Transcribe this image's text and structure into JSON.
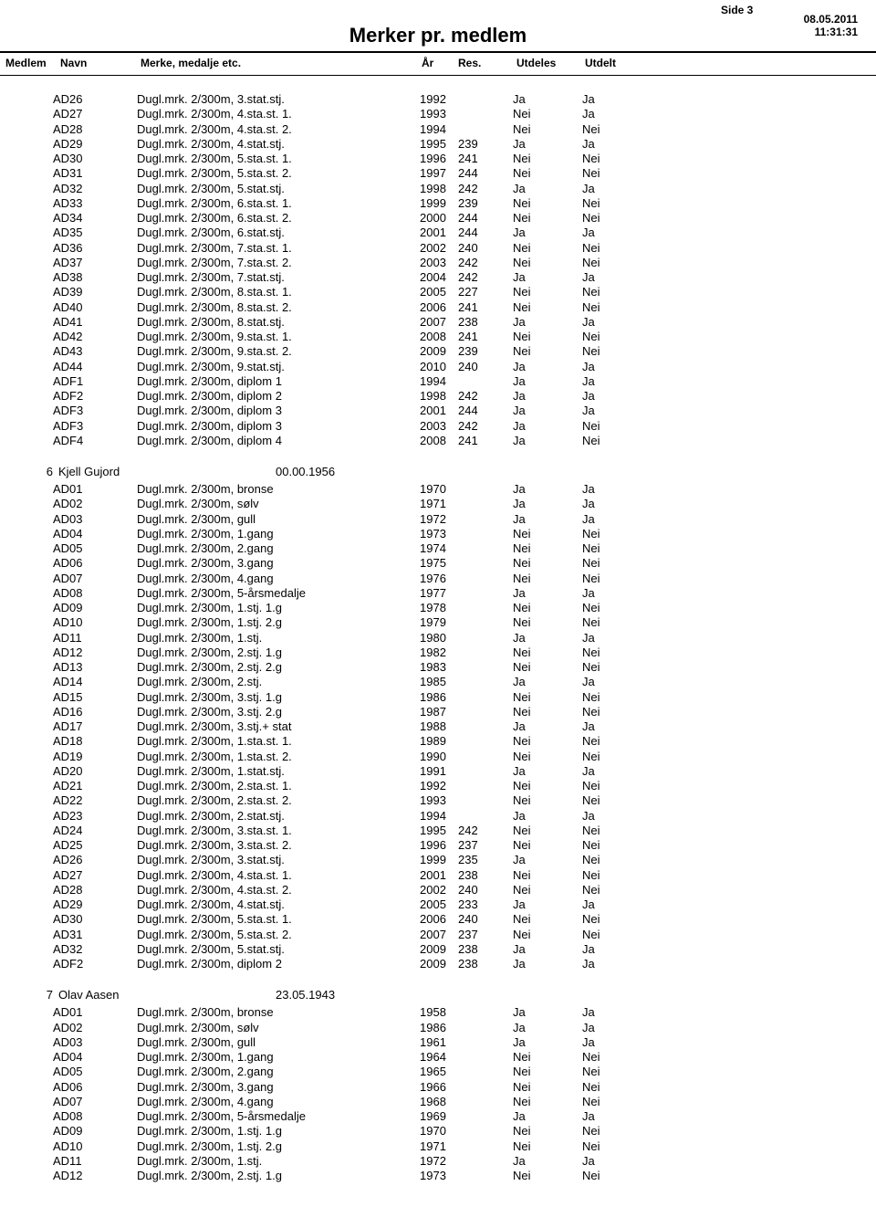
{
  "meta": {
    "side_label": "Side 3",
    "date": "08.05.2011",
    "time": "11:31:31",
    "title": "Merker pr. medlem"
  },
  "headers": {
    "medlem": "Medlem",
    "navn": "Navn",
    "merke": "Merke, medalje etc.",
    "ar": "År",
    "res": "Res.",
    "utdeles": "Utdeles",
    "utdelt": "Utdelt"
  },
  "sections": [
    {
      "member_id": "",
      "member_name": "",
      "member_dob": "",
      "show_member_line": false,
      "rows": [
        {
          "code": "AD26",
          "merke": "Dugl.mrk. 2/300m, 3.stat.stj.",
          "ar": "1992",
          "res": "",
          "utdeles": "Ja",
          "utdelt": "Ja"
        },
        {
          "code": "AD27",
          "merke": "Dugl.mrk. 2/300m, 4.sta.st. 1.",
          "ar": "1993",
          "res": "",
          "utdeles": "Nei",
          "utdelt": "Ja"
        },
        {
          "code": "AD28",
          "merke": "Dugl.mrk. 2/300m, 4.sta.st. 2.",
          "ar": "1994",
          "res": "",
          "utdeles": "Nei",
          "utdelt": "Nei"
        },
        {
          "code": "AD29",
          "merke": "Dugl.mrk. 2/300m, 4.stat.stj.",
          "ar": "1995",
          "res": "239",
          "utdeles": "Ja",
          "utdelt": "Ja"
        },
        {
          "code": "AD30",
          "merke": "Dugl.mrk. 2/300m, 5.sta.st. 1.",
          "ar": "1996",
          "res": "241",
          "utdeles": "Nei",
          "utdelt": "Nei"
        },
        {
          "code": "AD31",
          "merke": "Dugl.mrk. 2/300m, 5.sta.st. 2.",
          "ar": "1997",
          "res": "244",
          "utdeles": "Nei",
          "utdelt": "Nei"
        },
        {
          "code": "AD32",
          "merke": "Dugl.mrk. 2/300m, 5.stat.stj.",
          "ar": "1998",
          "res": "242",
          "utdeles": "Ja",
          "utdelt": "Ja"
        },
        {
          "code": "AD33",
          "merke": "Dugl.mrk. 2/300m, 6.sta.st. 1.",
          "ar": "1999",
          "res": "239",
          "utdeles": "Nei",
          "utdelt": "Nei"
        },
        {
          "code": "AD34",
          "merke": "Dugl.mrk. 2/300m, 6.sta.st. 2.",
          "ar": "2000",
          "res": "244",
          "utdeles": "Nei",
          "utdelt": "Nei"
        },
        {
          "code": "AD35",
          "merke": "Dugl.mrk. 2/300m, 6.stat.stj.",
          "ar": "2001",
          "res": "244",
          "utdeles": "Ja",
          "utdelt": "Ja"
        },
        {
          "code": "AD36",
          "merke": "Dugl.mrk. 2/300m, 7.sta.st. 1.",
          "ar": "2002",
          "res": "240",
          "utdeles": "Nei",
          "utdelt": "Nei"
        },
        {
          "code": "AD37",
          "merke": "Dugl.mrk. 2/300m, 7.sta.st. 2.",
          "ar": "2003",
          "res": "242",
          "utdeles": "Nei",
          "utdelt": "Nei"
        },
        {
          "code": "AD38",
          "merke": "Dugl.mrk. 2/300m, 7.stat.stj.",
          "ar": "2004",
          "res": "242",
          "utdeles": "Ja",
          "utdelt": "Ja"
        },
        {
          "code": "AD39",
          "merke": "Dugl.mrk. 2/300m, 8.sta.st. 1.",
          "ar": "2005",
          "res": "227",
          "utdeles": "Nei",
          "utdelt": "Nei"
        },
        {
          "code": "AD40",
          "merke": "Dugl.mrk. 2/300m, 8.sta.st. 2.",
          "ar": "2006",
          "res": "241",
          "utdeles": "Nei",
          "utdelt": "Nei"
        },
        {
          "code": "AD41",
          "merke": "Dugl.mrk. 2/300m, 8.stat.stj.",
          "ar": "2007",
          "res": "238",
          "utdeles": "Ja",
          "utdelt": "Ja"
        },
        {
          "code": "AD42",
          "merke": "Dugl.mrk. 2/300m, 9.sta.st. 1.",
          "ar": "2008",
          "res": "241",
          "utdeles": "Nei",
          "utdelt": "Nei"
        },
        {
          "code": "AD43",
          "merke": "Dugl.mrk. 2/300m, 9.sta.st. 2.",
          "ar": "2009",
          "res": "239",
          "utdeles": "Nei",
          "utdelt": "Nei"
        },
        {
          "code": "AD44",
          "merke": "Dugl.mrk. 2/300m, 9.stat.stj.",
          "ar": "2010",
          "res": "240",
          "utdeles": "Ja",
          "utdelt": "Ja"
        },
        {
          "code": "ADF1",
          "merke": "Dugl.mrk. 2/300m, diplom 1",
          "ar": "1994",
          "res": "",
          "utdeles": "Ja",
          "utdelt": "Ja"
        },
        {
          "code": "ADF2",
          "merke": "Dugl.mrk. 2/300m, diplom 2",
          "ar": "1998",
          "res": "242",
          "utdeles": "Ja",
          "utdelt": "Ja"
        },
        {
          "code": "ADF3",
          "merke": "Dugl.mrk. 2/300m, diplom 3",
          "ar": "2001",
          "res": "244",
          "utdeles": "Ja",
          "utdelt": "Ja"
        },
        {
          "code": "ADF3",
          "merke": "Dugl.mrk. 2/300m, diplom 3",
          "ar": "2003",
          "res": "242",
          "utdeles": "Ja",
          "utdelt": "Nei"
        },
        {
          "code": "ADF4",
          "merke": "Dugl.mrk. 2/300m, diplom 4",
          "ar": "2008",
          "res": "241",
          "utdeles": "Ja",
          "utdelt": "Nei"
        }
      ]
    },
    {
      "member_id": "6",
      "member_name": "Kjell Gujord",
      "member_dob": "00.00.1956",
      "show_member_line": true,
      "rows": [
        {
          "code": "AD01",
          "merke": "Dugl.mrk. 2/300m, bronse",
          "ar": "1970",
          "res": "",
          "utdeles": "Ja",
          "utdelt": "Ja"
        },
        {
          "code": "AD02",
          "merke": "Dugl.mrk. 2/300m, sølv",
          "ar": "1971",
          "res": "",
          "utdeles": "Ja",
          "utdelt": "Ja"
        },
        {
          "code": "AD03",
          "merke": "Dugl.mrk. 2/300m, gull",
          "ar": "1972",
          "res": "",
          "utdeles": "Ja",
          "utdelt": "Ja"
        },
        {
          "code": "AD04",
          "merke": "Dugl.mrk. 2/300m, 1.gang",
          "ar": "1973",
          "res": "",
          "utdeles": "Nei",
          "utdelt": "Nei"
        },
        {
          "code": "AD05",
          "merke": "Dugl.mrk. 2/300m, 2.gang",
          "ar": "1974",
          "res": "",
          "utdeles": "Nei",
          "utdelt": "Nei"
        },
        {
          "code": "AD06",
          "merke": "Dugl.mrk. 2/300m, 3.gang",
          "ar": "1975",
          "res": "",
          "utdeles": "Nei",
          "utdelt": "Nei"
        },
        {
          "code": "AD07",
          "merke": "Dugl.mrk. 2/300m, 4.gang",
          "ar": "1976",
          "res": "",
          "utdeles": "Nei",
          "utdelt": "Nei"
        },
        {
          "code": "AD08",
          "merke": "Dugl.mrk. 2/300m, 5-årsmedalje",
          "ar": "1977",
          "res": "",
          "utdeles": "Ja",
          "utdelt": "Ja"
        },
        {
          "code": "AD09",
          "merke": "Dugl.mrk. 2/300m, 1.stj. 1.g",
          "ar": "1978",
          "res": "",
          "utdeles": "Nei",
          "utdelt": "Nei"
        },
        {
          "code": "AD10",
          "merke": "Dugl.mrk. 2/300m, 1.stj. 2.g",
          "ar": "1979",
          "res": "",
          "utdeles": "Nei",
          "utdelt": "Nei"
        },
        {
          "code": "AD11",
          "merke": "Dugl.mrk. 2/300m, 1.stj.",
          "ar": "1980",
          "res": "",
          "utdeles": "Ja",
          "utdelt": "Ja"
        },
        {
          "code": "AD12",
          "merke": "Dugl.mrk. 2/300m, 2.stj. 1.g",
          "ar": "1982",
          "res": "",
          "utdeles": "Nei",
          "utdelt": "Nei"
        },
        {
          "code": "AD13",
          "merke": "Dugl.mrk. 2/300m, 2.stj. 2.g",
          "ar": "1983",
          "res": "",
          "utdeles": "Nei",
          "utdelt": "Nei"
        },
        {
          "code": "AD14",
          "merke": "Dugl.mrk. 2/300m, 2.stj.",
          "ar": "1985",
          "res": "",
          "utdeles": "Ja",
          "utdelt": "Ja"
        },
        {
          "code": "AD15",
          "merke": "Dugl.mrk. 2/300m, 3.stj. 1.g",
          "ar": "1986",
          "res": "",
          "utdeles": "Nei",
          "utdelt": "Nei"
        },
        {
          "code": "AD16",
          "merke": "Dugl.mrk. 2/300m, 3.stj. 2.g",
          "ar": "1987",
          "res": "",
          "utdeles": "Nei",
          "utdelt": "Nei"
        },
        {
          "code": "AD17",
          "merke": "Dugl.mrk. 2/300m, 3.stj.+ stat",
          "ar": "1988",
          "res": "",
          "utdeles": "Ja",
          "utdelt": "Ja"
        },
        {
          "code": "AD18",
          "merke": "Dugl.mrk. 2/300m, 1.sta.st. 1.",
          "ar": "1989",
          "res": "",
          "utdeles": "Nei",
          "utdelt": "Nei"
        },
        {
          "code": "AD19",
          "merke": "Dugl.mrk. 2/300m, 1.sta.st. 2.",
          "ar": "1990",
          "res": "",
          "utdeles": "Nei",
          "utdelt": "Nei"
        },
        {
          "code": "AD20",
          "merke": "Dugl.mrk. 2/300m, 1.stat.stj.",
          "ar": "1991",
          "res": "",
          "utdeles": "Ja",
          "utdelt": "Ja"
        },
        {
          "code": "AD21",
          "merke": "Dugl.mrk. 2/300m, 2.sta.st. 1.",
          "ar": "1992",
          "res": "",
          "utdeles": "Nei",
          "utdelt": "Nei"
        },
        {
          "code": "AD22",
          "merke": "Dugl.mrk. 2/300m, 2.sta.st. 2.",
          "ar": "1993",
          "res": "",
          "utdeles": "Nei",
          "utdelt": "Nei"
        },
        {
          "code": "AD23",
          "merke": "Dugl.mrk. 2/300m, 2.stat.stj.",
          "ar": "1994",
          "res": "",
          "utdeles": "Ja",
          "utdelt": "Ja"
        },
        {
          "code": "AD24",
          "merke": "Dugl.mrk. 2/300m, 3.sta.st. 1.",
          "ar": "1995",
          "res": "242",
          "utdeles": "Nei",
          "utdelt": "Nei"
        },
        {
          "code": "AD25",
          "merke": "Dugl.mrk. 2/300m, 3.sta.st. 2.",
          "ar": "1996",
          "res": "237",
          "utdeles": "Nei",
          "utdelt": "Nei"
        },
        {
          "code": "AD26",
          "merke": "Dugl.mrk. 2/300m, 3.stat.stj.",
          "ar": "1999",
          "res": "235",
          "utdeles": "Ja",
          "utdelt": "Nei"
        },
        {
          "code": "AD27",
          "merke": "Dugl.mrk. 2/300m, 4.sta.st. 1.",
          "ar": "2001",
          "res": "238",
          "utdeles": "Nei",
          "utdelt": "Nei"
        },
        {
          "code": "AD28",
          "merke": "Dugl.mrk. 2/300m, 4.sta.st. 2.",
          "ar": "2002",
          "res": "240",
          "utdeles": "Nei",
          "utdelt": "Nei"
        },
        {
          "code": "AD29",
          "merke": "Dugl.mrk. 2/300m, 4.stat.stj.",
          "ar": "2005",
          "res": "233",
          "utdeles": "Ja",
          "utdelt": "Ja"
        },
        {
          "code": "AD30",
          "merke": "Dugl.mrk. 2/300m, 5.sta.st. 1.",
          "ar": "2006",
          "res": "240",
          "utdeles": "Nei",
          "utdelt": "Nei"
        },
        {
          "code": "AD31",
          "merke": "Dugl.mrk. 2/300m, 5.sta.st. 2.",
          "ar": "2007",
          "res": "237",
          "utdeles": "Nei",
          "utdelt": "Nei"
        },
        {
          "code": "AD32",
          "merke": "Dugl.mrk. 2/300m, 5.stat.stj.",
          "ar": "2009",
          "res": "238",
          "utdeles": "Ja",
          "utdelt": "Ja"
        },
        {
          "code": "ADF2",
          "merke": "Dugl.mrk. 2/300m, diplom 2",
          "ar": "2009",
          "res": "238",
          "utdeles": "Ja",
          "utdelt": "Ja"
        }
      ]
    },
    {
      "member_id": "7",
      "member_name": "Olav Aasen",
      "member_dob": "23.05.1943",
      "show_member_line": true,
      "rows": [
        {
          "code": "AD01",
          "merke": "Dugl.mrk. 2/300m, bronse",
          "ar": "1958",
          "res": "",
          "utdeles": "Ja",
          "utdelt": "Ja"
        },
        {
          "code": "AD02",
          "merke": "Dugl.mrk. 2/300m, sølv",
          "ar": "1986",
          "res": "",
          "utdeles": "Ja",
          "utdelt": "Ja"
        },
        {
          "code": "AD03",
          "merke": "Dugl.mrk. 2/300m, gull",
          "ar": "1961",
          "res": "",
          "utdeles": "Ja",
          "utdelt": "Ja"
        },
        {
          "code": "AD04",
          "merke": "Dugl.mrk. 2/300m, 1.gang",
          "ar": "1964",
          "res": "",
          "utdeles": "Nei",
          "utdelt": "Nei"
        },
        {
          "code": "AD05",
          "merke": "Dugl.mrk. 2/300m, 2.gang",
          "ar": "1965",
          "res": "",
          "utdeles": "Nei",
          "utdelt": "Nei"
        },
        {
          "code": "AD06",
          "merke": "Dugl.mrk. 2/300m, 3.gang",
          "ar": "1966",
          "res": "",
          "utdeles": "Nei",
          "utdelt": "Nei"
        },
        {
          "code": "AD07",
          "merke": "Dugl.mrk. 2/300m, 4.gang",
          "ar": "1968",
          "res": "",
          "utdeles": "Nei",
          "utdelt": "Nei"
        },
        {
          "code": "AD08",
          "merke": "Dugl.mrk. 2/300m, 5-årsmedalje",
          "ar": "1969",
          "res": "",
          "utdeles": "Ja",
          "utdelt": "Ja"
        },
        {
          "code": "AD09",
          "merke": "Dugl.mrk. 2/300m, 1.stj. 1.g",
          "ar": "1970",
          "res": "",
          "utdeles": "Nei",
          "utdelt": "Nei"
        },
        {
          "code": "AD10",
          "merke": "Dugl.mrk. 2/300m, 1.stj. 2.g",
          "ar": "1971",
          "res": "",
          "utdeles": "Nei",
          "utdelt": "Nei"
        },
        {
          "code": "AD11",
          "merke": "Dugl.mrk. 2/300m, 1.stj.",
          "ar": "1972",
          "res": "",
          "utdeles": "Ja",
          "utdelt": "Ja"
        },
        {
          "code": "AD12",
          "merke": "Dugl.mrk. 2/300m, 2.stj. 1.g",
          "ar": "1973",
          "res": "",
          "utdeles": "Nei",
          "utdelt": "Nei"
        }
      ]
    }
  ]
}
